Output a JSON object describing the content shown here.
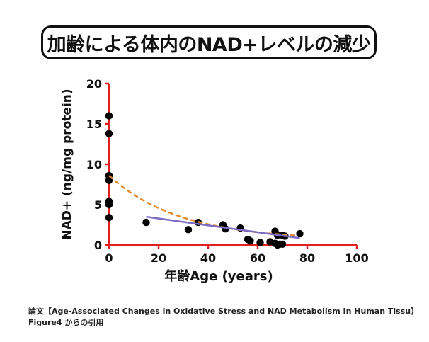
{
  "title": "加齢による体内のNAD+レベルの減少",
  "caption": {
    "line1": "論文【Age-Associated Changes in Oxidative Stress and NAD Metabolism In Human Tissu】",
    "line2": "Figure4 からの引用"
  },
  "chart_data": {
    "type": "scatter",
    "xlabel": "年齢Age (years)",
    "ylabel": "NAD+ (ng/mg protein)",
    "xlim": [
      0,
      100
    ],
    "ylim": [
      0,
      20
    ],
    "xticks": [
      0,
      20,
      40,
      60,
      80,
      100
    ],
    "yticks": [
      0,
      5,
      10,
      15,
      20
    ],
    "grid": false,
    "axis_color": "#e02020",
    "points": [
      {
        "x": 0,
        "y": 16.0
      },
      {
        "x": 0,
        "y": 13.8
      },
      {
        "x": 0,
        "y": 8.6
      },
      {
        "x": 0,
        "y": 8.0
      },
      {
        "x": 0,
        "y": 5.4
      },
      {
        "x": 0,
        "y": 5.0
      },
      {
        "x": 0,
        "y": 3.4
      },
      {
        "x": 15,
        "y": 2.8
      },
      {
        "x": 32,
        "y": 1.9
      },
      {
        "x": 36,
        "y": 2.8
      },
      {
        "x": 46,
        "y": 2.5
      },
      {
        "x": 47,
        "y": 2.0
      },
      {
        "x": 53,
        "y": 2.1
      },
      {
        "x": 56,
        "y": 0.7
      },
      {
        "x": 57,
        "y": 0.5
      },
      {
        "x": 61,
        "y": 0.3
      },
      {
        "x": 65,
        "y": 0.4
      },
      {
        "x": 67,
        "y": 1.7
      },
      {
        "x": 67,
        "y": 0.2
      },
      {
        "x": 68,
        "y": 1.2
      },
      {
        "x": 68,
        "y": 0.0
      },
      {
        "x": 69,
        "y": 0.1
      },
      {
        "x": 70,
        "y": 1.2
      },
      {
        "x": 71,
        "y": 1.1
      },
      {
        "x": 70,
        "y": 0.1
      },
      {
        "x": 77,
        "y": 1.4
      }
    ],
    "point_color": "#000000",
    "fits": [
      {
        "style": "dashed",
        "color": "#e08a2c",
        "kind": "exponential",
        "x_range": [
          0,
          76
        ],
        "a": 8.6,
        "b": 0.035,
        "c": 0.6
      },
      {
        "style": "solid",
        "color": "#7b6bc4",
        "kind": "linear",
        "x": [
          15,
          77
        ],
        "y": [
          3.5,
          0.85
        ]
      }
    ]
  }
}
